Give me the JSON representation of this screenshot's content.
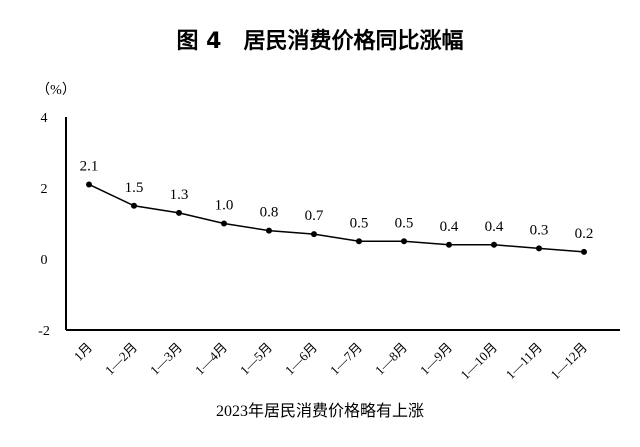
{
  "chart_data": {
    "type": "line",
    "title": "图 4　居民消费价格同比涨幅",
    "ylabel": "（%）",
    "xlabel": "2023年居民消费价格略有上涨",
    "categories": [
      "1月",
      "1—2月",
      "1—3月",
      "1—4月",
      "1—5月",
      "1—6月",
      "1—7月",
      "1—8月",
      "1—9月",
      "1—10月",
      "1—11月",
      "1—12月"
    ],
    "values": [
      2.1,
      1.5,
      1.3,
      1.0,
      0.8,
      0.7,
      0.5,
      0.5,
      0.4,
      0.4,
      0.3,
      0.2
    ],
    "data_labels": [
      "2.1",
      "1.5",
      "1.3",
      "1.0",
      "0.8",
      "0.7",
      "0.5",
      "0.5",
      "0.4",
      "0.4",
      "0.3",
      "0.2"
    ],
    "ylim": [
      -2,
      4
    ],
    "yticks": [
      -2,
      0,
      2,
      4
    ],
    "grid": false,
    "legend": "none",
    "color": "#000000"
  }
}
